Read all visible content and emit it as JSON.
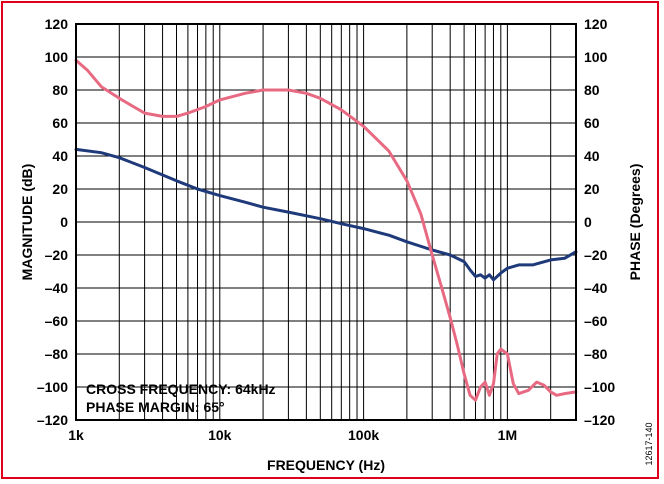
{
  "chart_data": {
    "type": "line",
    "xlabel": "FREQUENCY (Hz)",
    "ylabel_left": "MAGNITUDE (dB)",
    "ylabel_right": "PHASE (Degrees)",
    "x_scale": "log",
    "xlim": [
      1000,
      3000000
    ],
    "ylim_left": [
      -120,
      120
    ],
    "ylim_right": [
      -120,
      120
    ],
    "grid": true,
    "x_ticks": [
      {
        "value": 1000,
        "label": "1k"
      },
      {
        "value": 10000,
        "label": "10k"
      },
      {
        "value": 100000,
        "label": "100k"
      },
      {
        "value": 1000000,
        "label": "1M"
      }
    ],
    "y_ticks_left": [
      "120",
      "100",
      "80",
      "60",
      "40",
      "20",
      "0",
      "–20",
      "–40",
      "–60",
      "–80",
      "–100",
      "–120"
    ],
    "y_ticks_right": [
      "120",
      "100",
      "80",
      "60",
      "40",
      "20",
      "0",
      "–20",
      "–40",
      "–60",
      "–80",
      "–100",
      "–120"
    ],
    "y_tick_values": [
      120,
      100,
      80,
      60,
      40,
      20,
      0,
      -20,
      -40,
      -60,
      -80,
      -100,
      -120
    ],
    "annotations": [
      "CROSS FREQUENCY: 64kHz",
      "PHASE MARGIN: 65°"
    ],
    "figure_id": "12617-140",
    "colors": {
      "magnitude": "#1f3a7a",
      "phase": "#e86a82",
      "grid": "#000000",
      "border": "#e0001b"
    },
    "series": [
      {
        "axis": "left",
        "color": "#1f3a7a",
        "x": [
          1000,
          1500,
          2000,
          3000,
          5000,
          7000,
          10000,
          15000,
          20000,
          30000,
          50000,
          70000,
          100000,
          150000,
          200000,
          300000,
          400000,
          500000,
          550000,
          600000,
          650000,
          700000,
          750000,
          800000,
          850000,
          900000,
          1000000,
          1200000,
          1500000,
          2000000,
          2500000,
          3000000
        ],
        "y": [
          44,
          42,
          39,
          33,
          25,
          20,
          16,
          12,
          9,
          6,
          2,
          -1,
          -4,
          -8,
          -12,
          -17,
          -20,
          -24,
          -29,
          -33,
          -32,
          -34,
          -32,
          -35,
          -33,
          -31,
          -28,
          -26,
          -26,
          -23,
          -22,
          -18
        ]
      },
      {
        "axis": "right",
        "color": "#e86a82",
        "x": [
          1000,
          1200,
          1500,
          2000,
          2500,
          3000,
          4000,
          5000,
          6000,
          8000,
          10000,
          15000,
          20000,
          25000,
          30000,
          40000,
          50000,
          70000,
          100000,
          150000,
          200000,
          250000,
          300000,
          350000,
          400000,
          450000,
          500000,
          550000,
          600000,
          650000,
          700000,
          750000,
          800000,
          850000,
          900000,
          1000000,
          1100000,
          1200000,
          1400000,
          1600000,
          1800000,
          2000000,
          2200000,
          2500000,
          3000000
        ],
        "y": [
          98,
          92,
          82,
          75,
          70,
          66,
          64,
          64,
          66,
          70,
          74,
          78,
          80,
          80,
          80,
          78,
          75,
          68,
          58,
          43,
          25,
          5,
          -20,
          -40,
          -58,
          -75,
          -92,
          -105,
          -108,
          -100,
          -97,
          -105,
          -98,
          -80,
          -77,
          -80,
          -98,
          -104,
          -102,
          -97,
          -99,
          -103,
          -105,
          -104,
          -103
        ]
      }
    ]
  }
}
